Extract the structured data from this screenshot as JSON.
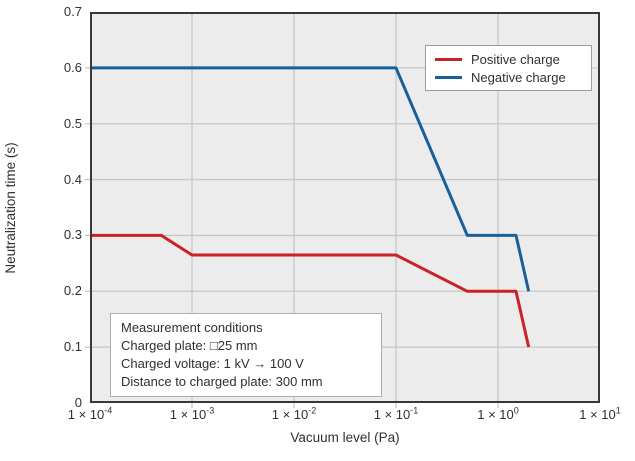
{
  "figure": {
    "background": "#ffffff",
    "plot_background": "#ececec",
    "grid_color": "#c7c7c7",
    "border_color": "#3e3633",
    "text_color": "#352f2c"
  },
  "chart_data": {
    "type": "line",
    "title": "",
    "xlabel": "Vacuum level (Pa)",
    "ylabel": "Neutralization time (s)",
    "x_scale": "log",
    "xlim": [
      0.0001,
      10
    ],
    "ylim": [
      0,
      0.7
    ],
    "grid": true,
    "legend_position": "top-right",
    "y_ticks": [
      "0",
      "0.1",
      "0.2",
      "0.3",
      "0.4",
      "0.5",
      "0.6",
      "0.7"
    ],
    "x_ticks": [
      {
        "base": "1 × 10",
        "exp": "-4"
      },
      {
        "base": "1 × 10",
        "exp": "-3"
      },
      {
        "base": "1 × 10",
        "exp": "-2"
      },
      {
        "base": "1 × 10",
        "exp": "-1"
      },
      {
        "base": "1 × 10",
        "exp": "0"
      },
      {
        "base": "1 × 10",
        "exp": "1"
      }
    ],
    "series": [
      {
        "name": "Positive charge",
        "color": "#cb2128",
        "points": [
          [
            0.0001,
            0.3
          ],
          [
            0.0005,
            0.3
          ],
          [
            0.001,
            0.265
          ],
          [
            0.1,
            0.265
          ],
          [
            0.5,
            0.2
          ],
          [
            1.5,
            0.2
          ],
          [
            2,
            0.1
          ]
        ]
      },
      {
        "name": "Negative charge",
        "color": "#17609b",
        "points": [
          [
            0.0001,
            0.6
          ],
          [
            0.1,
            0.6
          ],
          [
            0.5,
            0.3
          ],
          [
            1.5,
            0.3
          ],
          [
            2,
            0.2
          ]
        ]
      }
    ]
  },
  "annotation_box": {
    "lines": [
      "Measurement conditions",
      "Charged plate: □25 mm",
      "Charged voltage: 1 kV → 100 V",
      "Distance to charged plate: 300 mm"
    ]
  }
}
